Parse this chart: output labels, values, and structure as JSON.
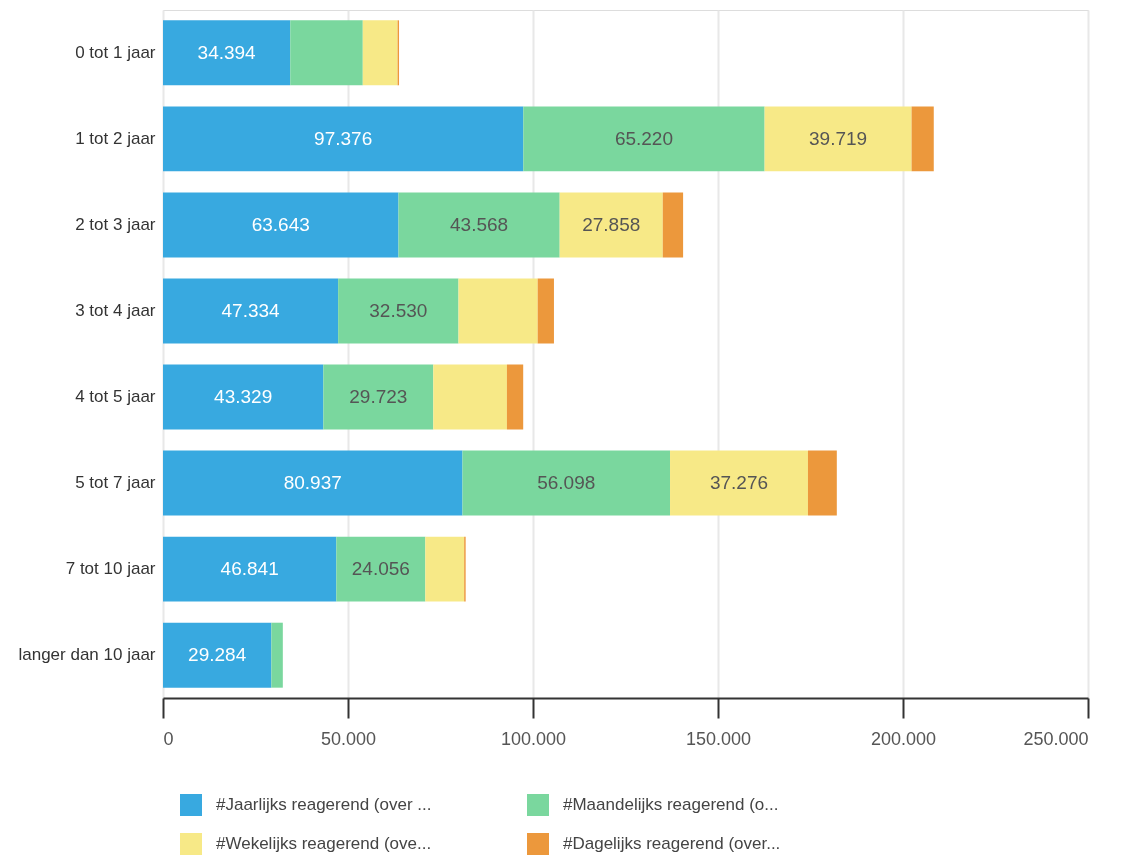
{
  "chart_data": {
    "type": "bar",
    "orientation": "horizontal",
    "stacked": true,
    "categories": [
      "0 tot 1 jaar",
      "1 tot 2 jaar",
      "2 tot 3 jaar",
      "3 tot 4 jaar",
      "4 tot 5 jaar",
      "5 tot 7 jaar",
      "7 tot 10 jaar",
      "langer dan 10 jaar"
    ],
    "series": [
      {
        "name": "#Jaarlijks reagerend (over ...",
        "color": "#38a9e0",
        "values": [
          34394,
          97376,
          63643,
          47334,
          43329,
          80937,
          46841,
          29284
        ],
        "value_labels": [
          "34.394",
          "97.376",
          "63.643",
          "47.334",
          "43.329",
          "80.937",
          "46.841",
          "29.284"
        ]
      },
      {
        "name": "#Maandelijks reagerend (o...",
        "color": "#7ad79e",
        "values": [
          19600,
          65220,
          43568,
          32530,
          29723,
          56098,
          24056,
          3100
        ],
        "value_labels": [
          null,
          "65.220",
          "43.568",
          "32.530",
          "29.723",
          "56.098",
          "24.056",
          null
        ]
      },
      {
        "name": "#Wekelijks reagerend (ove...",
        "color": "#f7e987",
        "values": [
          9400,
          39719,
          27858,
          21400,
          19900,
          37276,
          10500,
          null
        ],
        "value_labels": [
          null,
          "39.719",
          "27.858",
          null,
          null,
          "37.276",
          null,
          null
        ]
      },
      {
        "name": "#Dagelijks reagerend (over...",
        "color": "#ec983c",
        "values": [
          400,
          6000,
          5500,
          4400,
          4400,
          7800,
          400,
          null
        ]
      }
    ],
    "xlim": [
      0,
      250000
    ],
    "xticks": [
      0,
      {
        "value": 50000,
        "label": "50.000"
      },
      {
        "value": 100000,
        "label": "100.000"
      },
      {
        "value": 150000,
        "label": "150.000"
      },
      {
        "value": 200000,
        "label": "200.000"
      },
      {
        "value": 250000,
        "label": "250.000"
      }
    ],
    "grid": "x",
    "legend": "bottom"
  }
}
